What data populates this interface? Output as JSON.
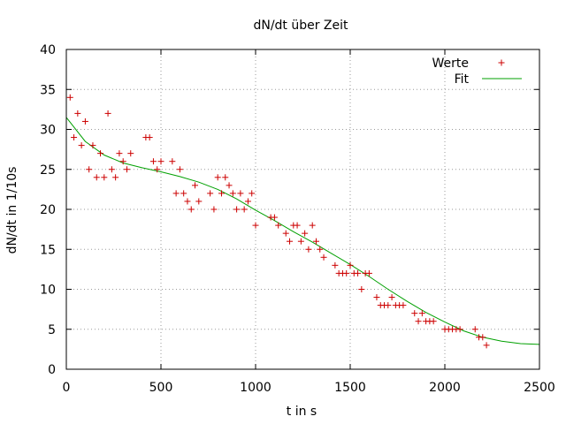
{
  "chart_data": {
    "type": "scatter",
    "title": "dN/dt über Zeit",
    "xlabel": "t in s",
    "ylabel": "dN/dt in 1/10s",
    "xlim": [
      0,
      2500
    ],
    "ylim": [
      0,
      40
    ],
    "xticks": [
      0,
      500,
      1000,
      1500,
      2000,
      2500
    ],
    "yticks": [
      0,
      5,
      10,
      15,
      20,
      25,
      30,
      35,
      40
    ],
    "grid": true,
    "legend_position": "top-right",
    "series": [
      {
        "name": "Werte",
        "kind": "points",
        "marker": "+",
        "color": "#cc0000",
        "points": [
          [
            20,
            34
          ],
          [
            40,
            29
          ],
          [
            60,
            32
          ],
          [
            80,
            28
          ],
          [
            100,
            31
          ],
          [
            120,
            25
          ],
          [
            140,
            28
          ],
          [
            160,
            24
          ],
          [
            180,
            27
          ],
          [
            200,
            24
          ],
          [
            220,
            32
          ],
          [
            240,
            25
          ],
          [
            260,
            24
          ],
          [
            280,
            27
          ],
          [
            300,
            26
          ],
          [
            320,
            25
          ],
          [
            340,
            27
          ],
          [
            420,
            29
          ],
          [
            440,
            29
          ],
          [
            460,
            26
          ],
          [
            480,
            25
          ],
          [
            500,
            26
          ],
          [
            560,
            26
          ],
          [
            580,
            22
          ],
          [
            600,
            25
          ],
          [
            620,
            22
          ],
          [
            640,
            21
          ],
          [
            660,
            20
          ],
          [
            680,
            23
          ],
          [
            700,
            21
          ],
          [
            760,
            22
          ],
          [
            780,
            20
          ],
          [
            800,
            24
          ],
          [
            820,
            22
          ],
          [
            840,
            24
          ],
          [
            860,
            23
          ],
          [
            880,
            22
          ],
          [
            900,
            20
          ],
          [
            920,
            22
          ],
          [
            940,
            20
          ],
          [
            960,
            21
          ],
          [
            980,
            22
          ],
          [
            1000,
            18
          ],
          [
            1080,
            19
          ],
          [
            1100,
            19
          ],
          [
            1120,
            18
          ],
          [
            1160,
            17
          ],
          [
            1180,
            16
          ],
          [
            1200,
            18
          ],
          [
            1220,
            18
          ],
          [
            1240,
            16
          ],
          [
            1260,
            17
          ],
          [
            1280,
            15
          ],
          [
            1300,
            18
          ],
          [
            1320,
            16
          ],
          [
            1340,
            15
          ],
          [
            1360,
            14
          ],
          [
            1420,
            13
          ],
          [
            1440,
            12
          ],
          [
            1460,
            12
          ],
          [
            1480,
            12
          ],
          [
            1500,
            13
          ],
          [
            1520,
            12
          ],
          [
            1540,
            12
          ],
          [
            1560,
            10
          ],
          [
            1580,
            12
          ],
          [
            1600,
            12
          ],
          [
            1640,
            9
          ],
          [
            1660,
            8
          ],
          [
            1680,
            8
          ],
          [
            1700,
            8
          ],
          [
            1720,
            9
          ],
          [
            1740,
            8
          ],
          [
            1760,
            8
          ],
          [
            1780,
            8
          ],
          [
            1840,
            7
          ],
          [
            1860,
            6
          ],
          [
            1880,
            7
          ],
          [
            1900,
            6
          ],
          [
            1920,
            6
          ],
          [
            1940,
            6
          ],
          [
            2000,
            5
          ],
          [
            2020,
            5
          ],
          [
            2040,
            5
          ],
          [
            2060,
            5
          ],
          [
            2080,
            5
          ],
          [
            2160,
            5
          ],
          [
            2180,
            4
          ],
          [
            2200,
            4
          ],
          [
            2220,
            3
          ]
        ]
      },
      {
        "name": "Fit",
        "kind": "line",
        "color": "#00a000",
        "points": [
          [
            0,
            31.5
          ],
          [
            100,
            28.5
          ],
          [
            200,
            26.8
          ],
          [
            300,
            25.8
          ],
          [
            400,
            25.2
          ],
          [
            500,
            24.7
          ],
          [
            600,
            24.1
          ],
          [
            700,
            23.4
          ],
          [
            800,
            22.5
          ],
          [
            900,
            21.3
          ],
          [
            1000,
            19.9
          ],
          [
            1100,
            18.6
          ],
          [
            1200,
            17.2
          ],
          [
            1300,
            15.9
          ],
          [
            1400,
            14.5
          ],
          [
            1500,
            13.1
          ],
          [
            1600,
            11.6
          ],
          [
            1700,
            10.0
          ],
          [
            1800,
            8.5
          ],
          [
            1900,
            7.1
          ],
          [
            2000,
            5.9
          ],
          [
            2100,
            4.8
          ],
          [
            2200,
            4.0
          ],
          [
            2300,
            3.5
          ],
          [
            2400,
            3.2
          ],
          [
            2500,
            3.1
          ]
        ]
      }
    ]
  }
}
